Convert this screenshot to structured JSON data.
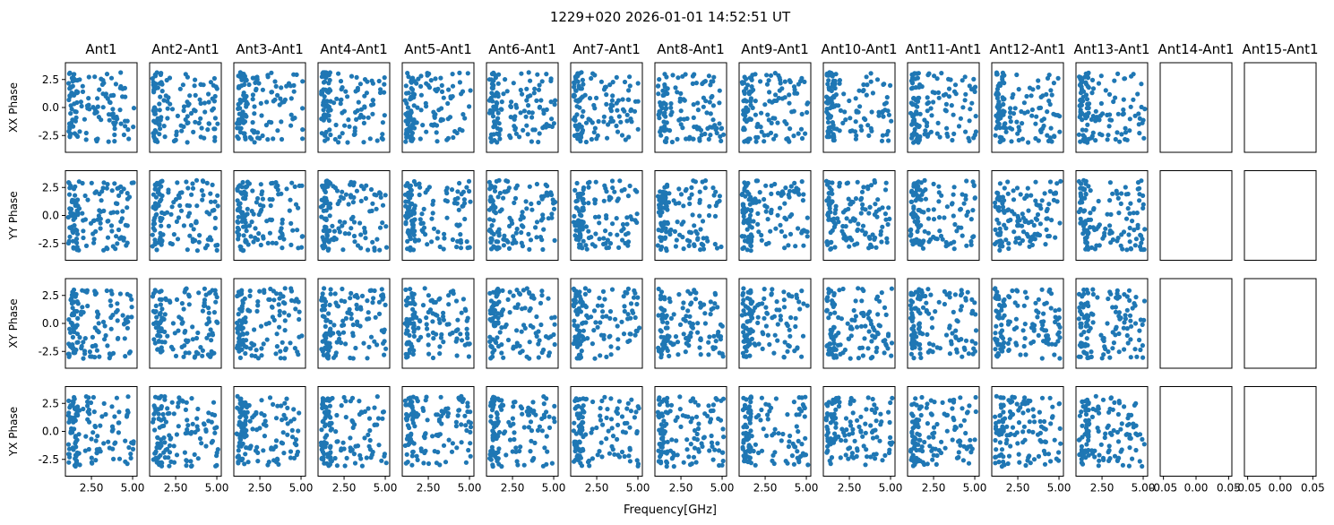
{
  "chart_data": {
    "type": "scatter",
    "title": "1229+020 2026-01-01 14:52:51 UT",
    "xlabel": "Frequency[GHz]",
    "columns": [
      "Ant1",
      "Ant2-Ant1",
      "Ant3-Ant1",
      "Ant4-Ant1",
      "Ant5-Ant1",
      "Ant6-Ant1",
      "Ant7-Ant1",
      "Ant8-Ant1",
      "Ant9-Ant1",
      "Ant10-Ant1",
      "Ant11-Ant1",
      "Ant12-Ant1",
      "Ant13-Ant1",
      "Ant14-Ant1",
      "Ant15-Ant1"
    ],
    "rows": [
      "XX Phase",
      "YY Phase",
      "XY Phase",
      "YX Phase"
    ],
    "empty_columns": [
      "Ant14-Ant1",
      "Ant15-Ant1"
    ],
    "xlim": [
      0.92,
      5.27
    ],
    "ylim": [
      -4.0,
      4.0
    ],
    "xticks": [
      "2.50",
      "5.00"
    ],
    "xtick_values": [
      2.5,
      5.0
    ],
    "empty_xticks": [
      "-0.05",
      "0.00",
      "0.05"
    ],
    "empty_xtick_values": [
      -0.05,
      0.0,
      0.05
    ],
    "empty_xlim": [
      -0.055,
      0.055
    ],
    "yticks": [
      "2.5",
      "0.0",
      "-2.5"
    ],
    "ytick_values": [
      2.5,
      0.0,
      -2.5
    ],
    "data_x_range": [
      1.1,
      5.1
    ],
    "data_y_range": [
      -3.14,
      3.14
    ],
    "color": "#1f77b4",
    "grid": false
  }
}
